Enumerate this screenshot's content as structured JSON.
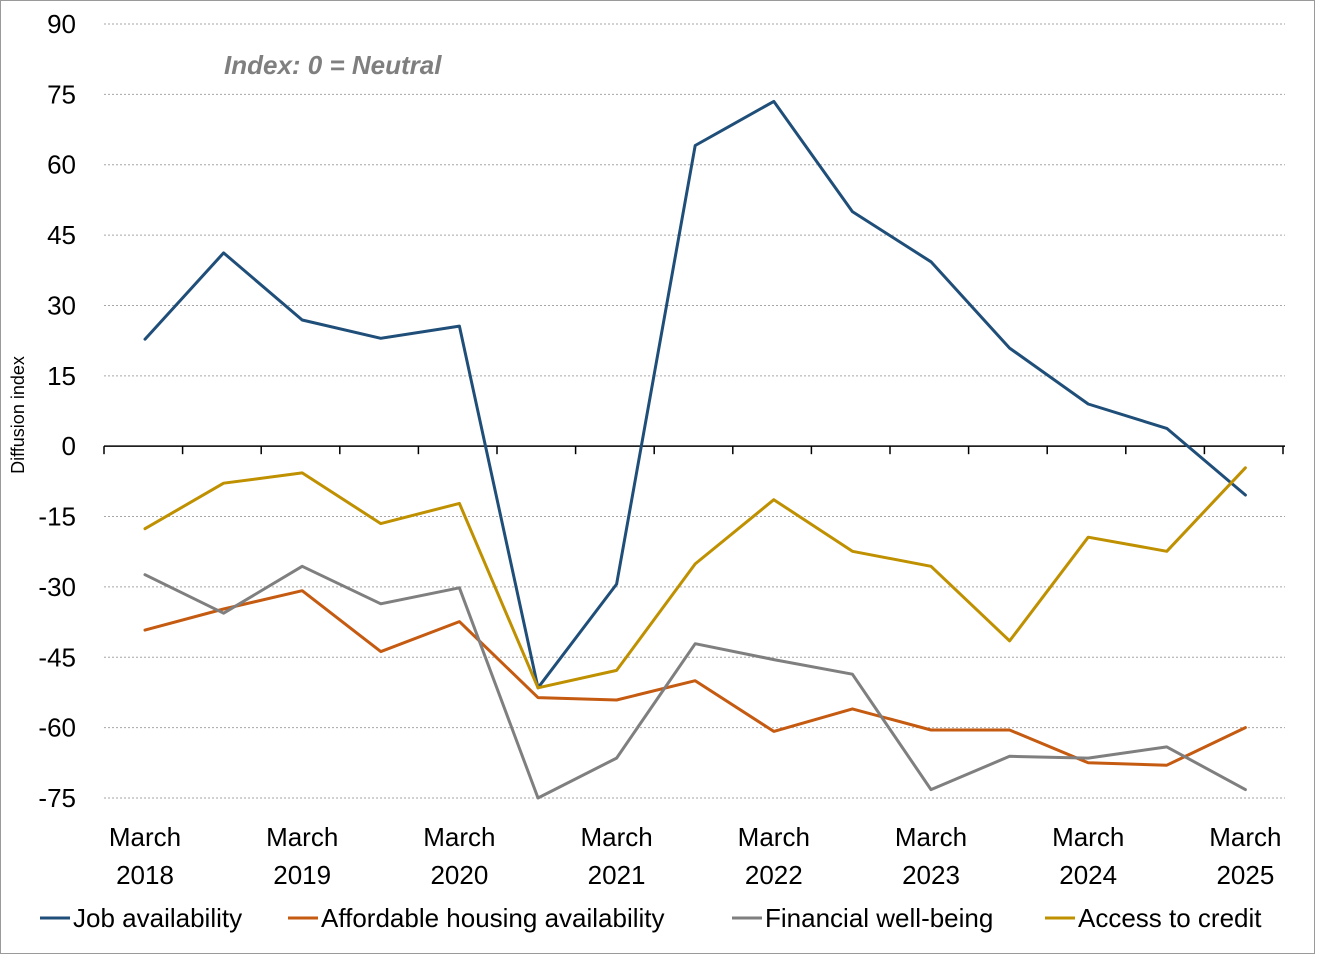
{
  "chart_data": {
    "type": "line",
    "title": "",
    "annotation": "Index: 0 = Neutral",
    "xlabel": "",
    "ylabel": "Diffusion index",
    "ylim": [
      -75,
      90
    ],
    "yticks": [
      90,
      75,
      60,
      45,
      30,
      15,
      0,
      -15,
      -30,
      -45,
      -60,
      -75
    ],
    "grid": true,
    "legend_position": "bottom",
    "x": [
      "Mar 2018",
      "Sep 2018",
      "Mar 2019",
      "Sep 2019",
      "Mar 2020",
      "Sep 2020",
      "Mar 2021",
      "Sep 2021",
      "Mar 2022",
      "Sep 2022",
      "Mar 2023",
      "Sep 2023",
      "Mar 2024",
      "Sep 2024",
      "Mar 2025"
    ],
    "xtick_labels": [
      {
        "index": 0,
        "line1": "March",
        "line2": "2018"
      },
      {
        "index": 2,
        "line1": "March",
        "line2": "2019"
      },
      {
        "index": 4,
        "line1": "March",
        "line2": "2020"
      },
      {
        "index": 6,
        "line1": "March",
        "line2": "2021"
      },
      {
        "index": 8,
        "line1": "March",
        "line2": "2022"
      },
      {
        "index": 10,
        "line1": "March",
        "line2": "2023"
      },
      {
        "index": 12,
        "line1": "March",
        "line2": "2024"
      },
      {
        "index": 14,
        "line1": "March",
        "line2": "2025"
      }
    ],
    "series": [
      {
        "name": "Job availability",
        "color": "#1f4e79",
        "values": [
          22.8,
          41.2,
          26.9,
          23.0,
          25.6,
          -51.5,
          -29.4,
          64.1,
          73.5,
          50.0,
          39.3,
          20.9,
          9.0,
          3.8,
          -10.4
        ]
      },
      {
        "name": "Affordable housing availability",
        "color": "#c55a11",
        "values": [
          -39.2,
          -34.7,
          -30.8,
          -43.8,
          -37.4,
          -53.6,
          -54.1,
          -50.0,
          -60.8,
          -56.0,
          -60.5,
          -60.5,
          -67.5,
          -68.0,
          -60.0
        ]
      },
      {
        "name": "Financial well-being",
        "color": "#7f7f7f",
        "values": [
          -27.4,
          -35.6,
          -25.6,
          -33.6,
          -30.2,
          -75.0,
          -66.5,
          -42.1,
          -45.5,
          -48.6,
          -73.2,
          -66.1,
          -66.5,
          -64.1,
          -73.2
        ]
      },
      {
        "name": "Access to credit",
        "color": "#bf9000",
        "values": [
          -17.6,
          -7.9,
          -5.7,
          -16.5,
          -12.2,
          -51.5,
          -47.8,
          -25.1,
          -11.4,
          -22.4,
          -25.6,
          -41.5,
          -19.4,
          -22.4,
          -4.6
        ]
      }
    ]
  }
}
